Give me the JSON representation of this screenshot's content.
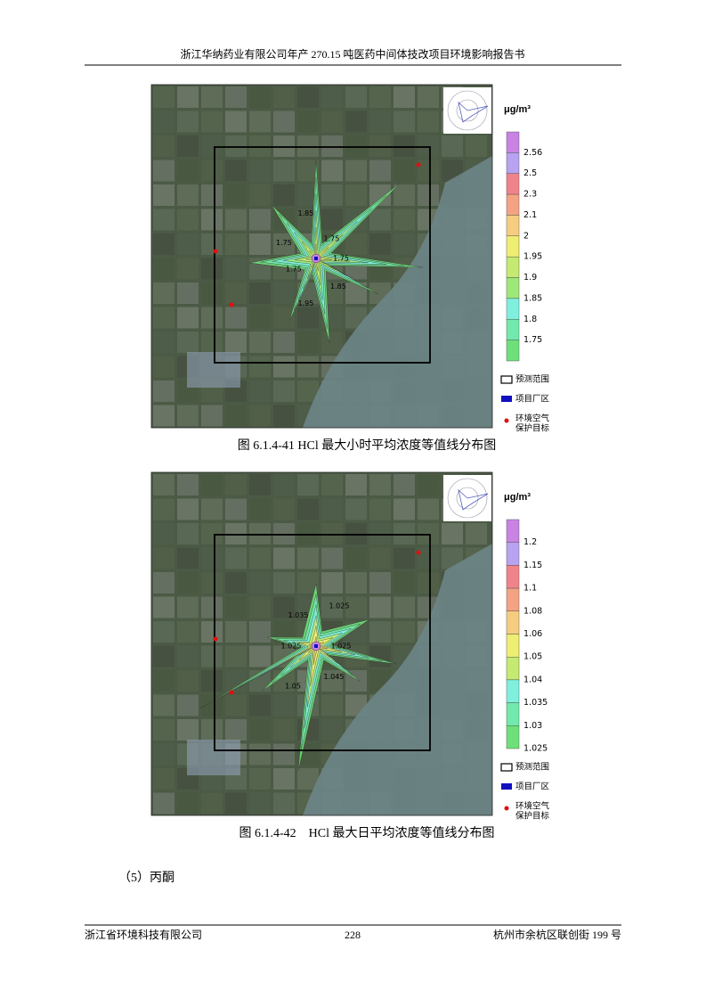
{
  "header": {
    "title": "浙江华纳药业有限公司年产 270.15 吨医药中间体技改项目环境影响报告书"
  },
  "figures": [
    {
      "caption": "图 6.1.4-41 HCl 最大小时平均浓度等值线分布图",
      "unit": "μg/m³",
      "colorbar": {
        "ticks": [
          "2.56",
          "2.5",
          "2.3",
          "2.1",
          "2",
          "1.95",
          "1.9",
          "1.85",
          "1.8",
          "1.75"
        ],
        "colors": [
          "#c983e3",
          "#b7a3ef",
          "#f0838a",
          "#f3a383",
          "#f5cd80",
          "#eeee72",
          "#c4ea72",
          "#9ee87a",
          "#7ff0dd",
          "#72e9ad",
          "#6ee079"
        ]
      },
      "contour_labels": [
        "1.75",
        "1.85",
        "1.95",
        "1.75",
        "1.75",
        "1.85",
        "1.75"
      ],
      "legend": [
        {
          "lines": [
            "预测范围"
          ]
        },
        {
          "lines": [
            "项目厂区"
          ]
        },
        {
          "lines": [
            "环境空气",
            "保护目标"
          ]
        }
      ]
    },
    {
      "caption": "图 6.1.4-42　HCl 最大日平均浓度等值线分布图",
      "unit": "μg/m³",
      "colorbar": {
        "ticks": [
          "1.2",
          "1.15",
          "1.1",
          "1.08",
          "1.06",
          "1.05",
          "1.04",
          "1.035",
          "1.03",
          "1.025"
        ],
        "colors": [
          "#c983e3",
          "#b7a3ef",
          "#f0838a",
          "#f3a383",
          "#f5cd80",
          "#eeee72",
          "#c4ea72",
          "#7ff0dd",
          "#72e9ad",
          "#6ee079"
        ]
      },
      "contour_labels": [
        "1.025",
        "1.045",
        "1.05",
        "1.025",
        "1.035",
        "1.025"
      ],
      "legend": [
        {
          "lines": [
            "预测范围"
          ]
        },
        {
          "lines": [
            "项目厂区"
          ]
        },
        {
          "lines": [
            "环境空气",
            "保护目标"
          ]
        }
      ]
    }
  ],
  "section": "（5）丙酮",
  "footer": {
    "left": "浙江省环境科技有限公司",
    "page": "228",
    "right": "杭州市余杭区联创街 199 号"
  }
}
